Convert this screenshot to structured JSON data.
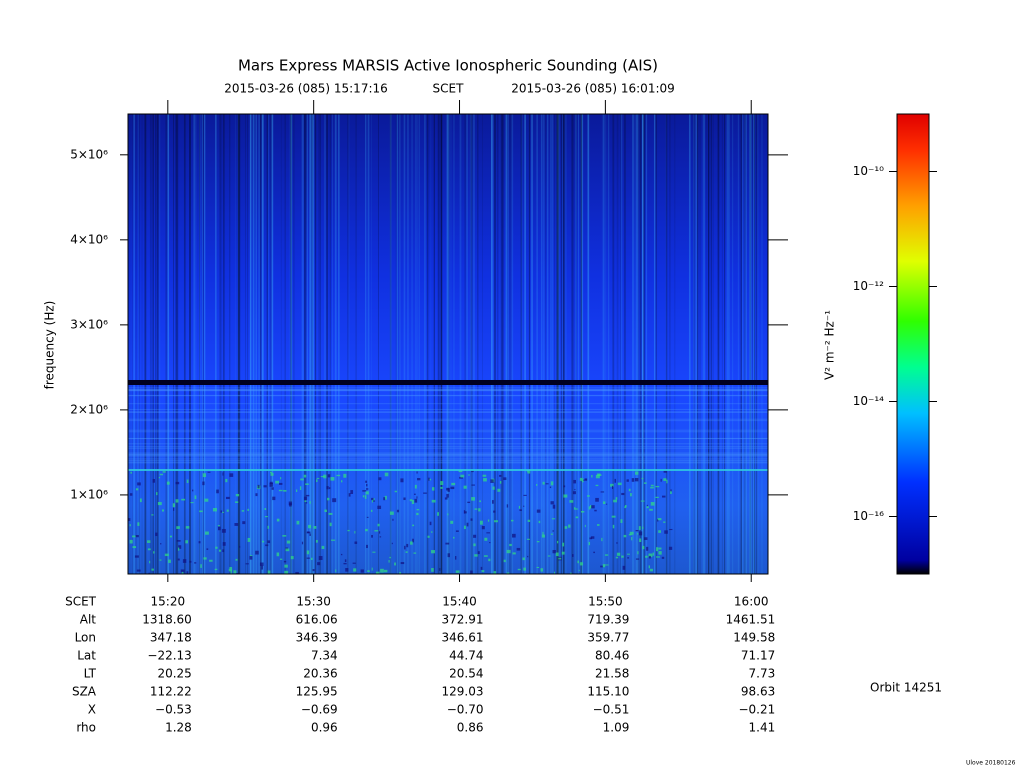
{
  "chart_data": {
    "type": "spectrogram",
    "title": "Mars Express MARSIS Active Ionospheric Sounding (AIS)",
    "time_range": {
      "start": "2015-03-26 (085) 15:17:16",
      "frame": "SCET",
      "end": "2015-03-26 (085) 16:01:09"
    },
    "ylabel": "frequency (Hz)",
    "xlim": [
      917.27,
      961.15
    ],
    "xticks": [
      {
        "value": 920,
        "label": "15:20"
      },
      {
        "value": 930,
        "label": "15:30"
      },
      {
        "value": 940,
        "label": "15:40"
      },
      {
        "value": 950,
        "label": "15:50"
      },
      {
        "value": 960,
        "label": "16:00"
      }
    ],
    "ylim": [
      70000,
      5480000
    ],
    "yticks": [
      {
        "value": 1000000,
        "label": "1×10⁶"
      },
      {
        "value": 2000000,
        "label": "2×10⁶"
      },
      {
        "value": 3000000,
        "label": "3×10⁶"
      },
      {
        "value": 4000000,
        "label": "4×10⁶"
      },
      {
        "value": 5000000,
        "label": "5×10⁶"
      }
    ],
    "colorbar": {
      "label": "V² m⁻² Hz⁻¹",
      "scale": "log",
      "lim": [
        1e-17,
        1e-09
      ],
      "ticks": [
        {
          "value": 1e-16,
          "label": "10⁻¹⁶"
        },
        {
          "value": 1e-14,
          "label": "10⁻¹⁴"
        },
        {
          "value": 1e-12,
          "label": "10⁻¹²"
        },
        {
          "value": 1e-10,
          "label": "10⁻¹⁰"
        }
      ]
    },
    "ephemeris": {
      "header": "SCET",
      "rows": [
        {
          "label": "Alt",
          "values": [
            "1318.60",
            "616.06",
            "372.91",
            "719.39",
            "1461.51"
          ]
        },
        {
          "label": "Lon",
          "values": [
            "347.18",
            "346.39",
            "346.61",
            "359.77",
            "149.58"
          ]
        },
        {
          "label": "Lat",
          "values": [
            "−22.13",
            "7.34",
            "44.74",
            "80.46",
            "71.17"
          ]
        },
        {
          "label": "LT",
          "values": [
            "20.25",
            "20.36",
            "20.54",
            "21.58",
            "7.73"
          ]
        },
        {
          "label": "SZA",
          "values": [
            "112.22",
            "125.95",
            "129.03",
            "115.10",
            "98.63"
          ]
        },
        {
          "label": "X",
          "values": [
            "−0.53",
            "−0.69",
            "−0.70",
            "−0.51",
            "−0.21"
          ]
        },
        {
          "label": "rho",
          "values": [
            "1.28",
            "0.96",
            "0.86",
            "1.09",
            "1.41"
          ]
        }
      ]
    },
    "orbit": "Orbit 14251",
    "credit": "Ulove 20180126"
  }
}
